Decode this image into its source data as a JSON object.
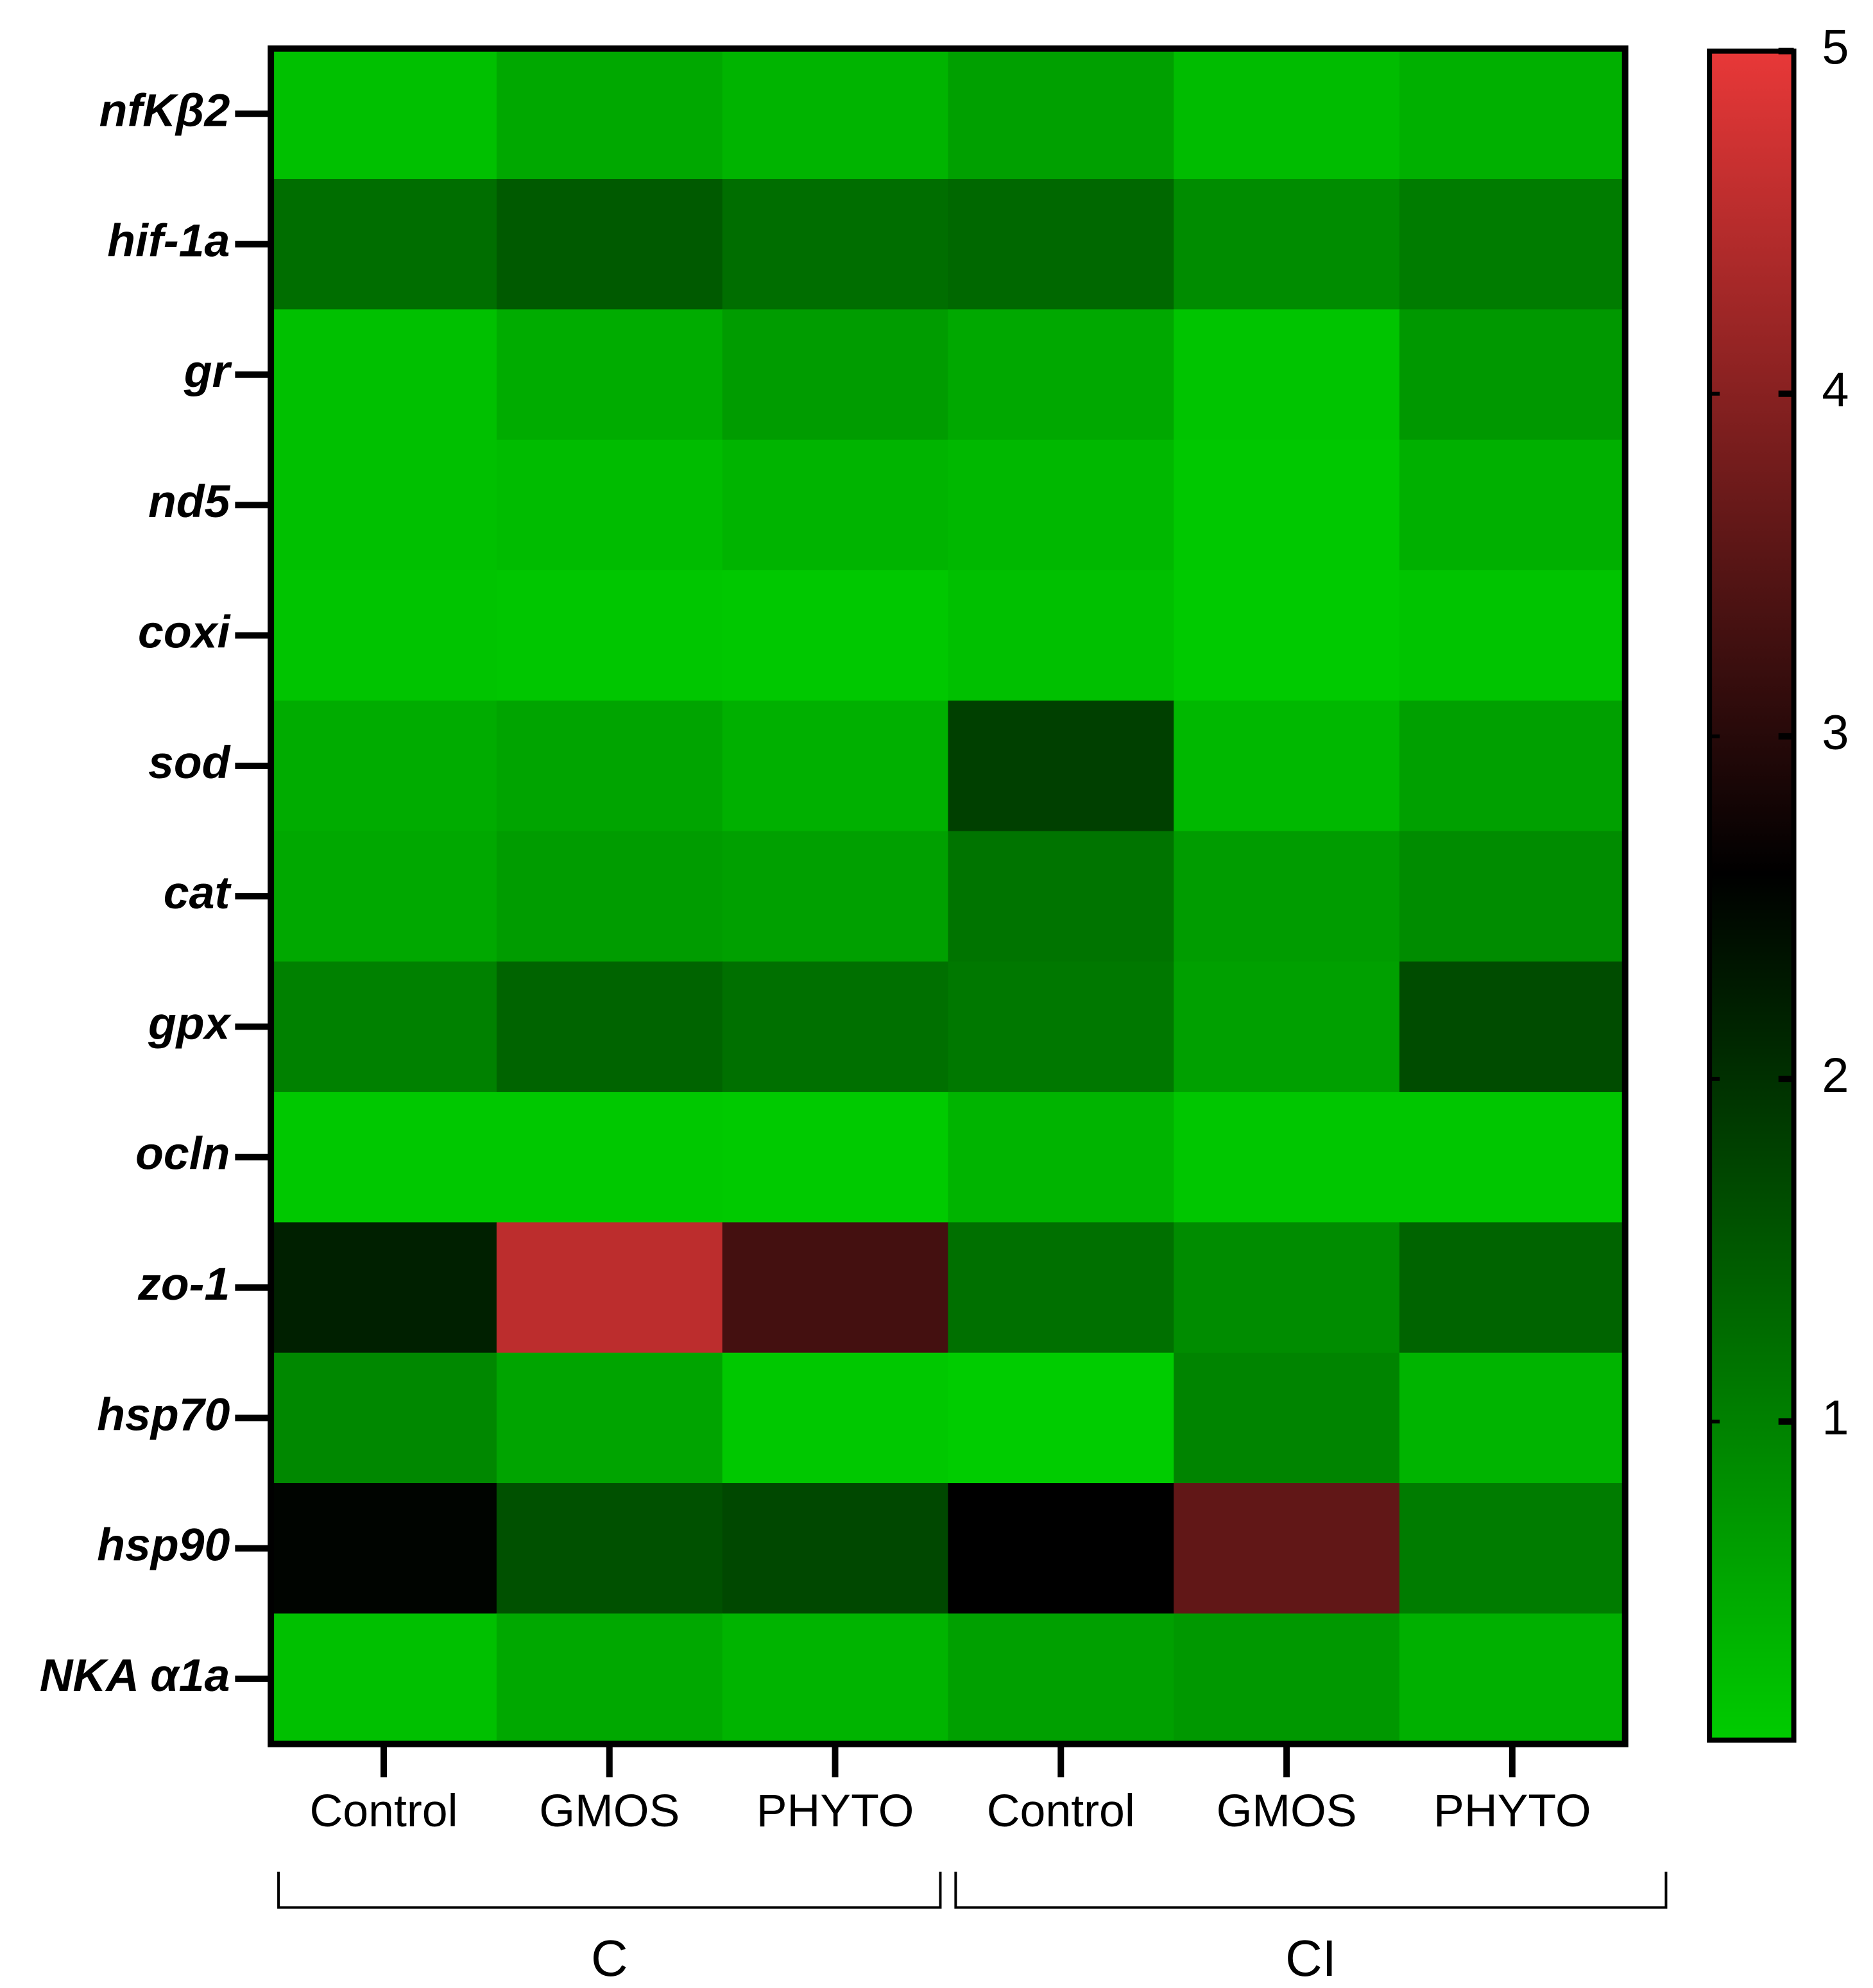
{
  "chart_data": {
    "type": "heatmap",
    "categories": [
      "Control",
      "GMOS",
      "PHYTO",
      "Control",
      "GMOS",
      "PHYTO"
    ],
    "groups": [
      "C",
      "CI"
    ],
    "rows": [
      "nfKβ2",
      "hif-1a",
      "gr",
      "nd5",
      "coxi",
      "sod",
      "cat",
      "gpx",
      "ocln",
      "zo-1",
      "hsp70",
      "hsp90",
      "NKA α1a"
    ],
    "z": [
      [
        0.22,
        0.52,
        0.37,
        0.62,
        0.27,
        0.42
      ],
      [
        1.24,
        1.48,
        1.24,
        1.31,
        0.86,
        1.06
      ],
      [
        0.22,
        0.47,
        0.67,
        0.52,
        0.17,
        0.72
      ],
      [
        0.22,
        0.27,
        0.37,
        0.32,
        0.12,
        0.42
      ],
      [
        0.17,
        0.15,
        0.12,
        0.22,
        0.1,
        0.17
      ],
      [
        0.47,
        0.57,
        0.42,
        1.81,
        0.32,
        0.62
      ],
      [
        0.52,
        0.67,
        0.62,
        1.16,
        0.67,
        0.86
      ],
      [
        1.0,
        1.36,
        1.21,
        1.11,
        0.62,
        1.66
      ],
      [
        0.12,
        0.12,
        0.1,
        0.37,
        0.15,
        0.15
      ],
      [
        2.2,
        4.55,
        3.3,
        1.21,
        0.86,
        1.36
      ],
      [
        0.91,
        0.57,
        0.12,
        0.07,
        0.96,
        0.37
      ],
      [
        2.55,
        1.6,
        1.71,
        2.6,
        3.6,
        1.06
      ],
      [
        0.22,
        0.52,
        0.37,
        0.62,
        0.72,
        0.42
      ]
    ],
    "zlim": [
      0.07,
      5
    ],
    "zticks": [
      1,
      2,
      3,
      4,
      5
    ],
    "colorscale": [
      [
        0.07,
        "#00cc00"
      ],
      [
        2.6,
        "#000000"
      ],
      [
        5,
        "#e83838"
      ]
    ]
  }
}
